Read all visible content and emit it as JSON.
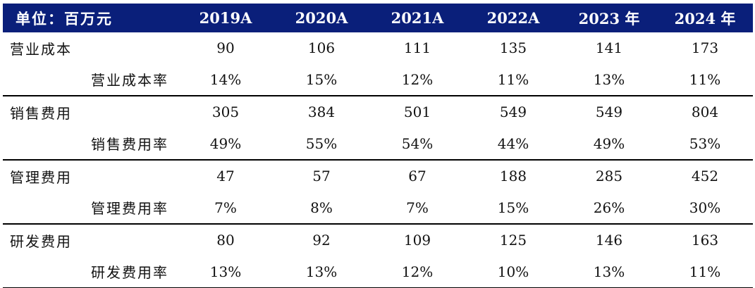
{
  "table": {
    "header": [
      "单位：百万元",
      "2019A",
      "2020A",
      "2021A",
      "2022A",
      "2023 年",
      "2024 年"
    ],
    "rows": [
      {
        "label": "营业成本",
        "values": [
          "90",
          "106",
          "111",
          "135",
          "141",
          "173"
        ]
      },
      {
        "label": "营业成本率",
        "values": [
          "14%",
          "15%",
          "12%",
          "11%",
          "13%",
          "11%"
        ]
      },
      {
        "label": "销售费用",
        "values": [
          "305",
          "384",
          "501",
          "549",
          "549",
          "804"
        ]
      },
      {
        "label": "销售费用率",
        "values": [
          "49%",
          "55%",
          "54%",
          "44%",
          "49%",
          "53%"
        ]
      },
      {
        "label": "管理费用",
        "values": [
          "47",
          "57",
          "67",
          "188",
          "285",
          "452"
        ]
      },
      {
        "label": "管理费用率",
        "values": [
          "7%",
          "8%",
          "7%",
          "15%",
          "26%",
          "30%"
        ]
      },
      {
        "label": "研发费用",
        "values": [
          "80",
          "92",
          "109",
          "125",
          "146",
          "163"
        ]
      },
      {
        "label": "研发费用率",
        "values": [
          "13%",
          "13%",
          "12%",
          "10%",
          "13%",
          "11%"
        ]
      }
    ]
  },
  "colors": {
    "header_bg": "#0a1f7a",
    "header_text": "#ffffff",
    "rule": "#000000"
  }
}
